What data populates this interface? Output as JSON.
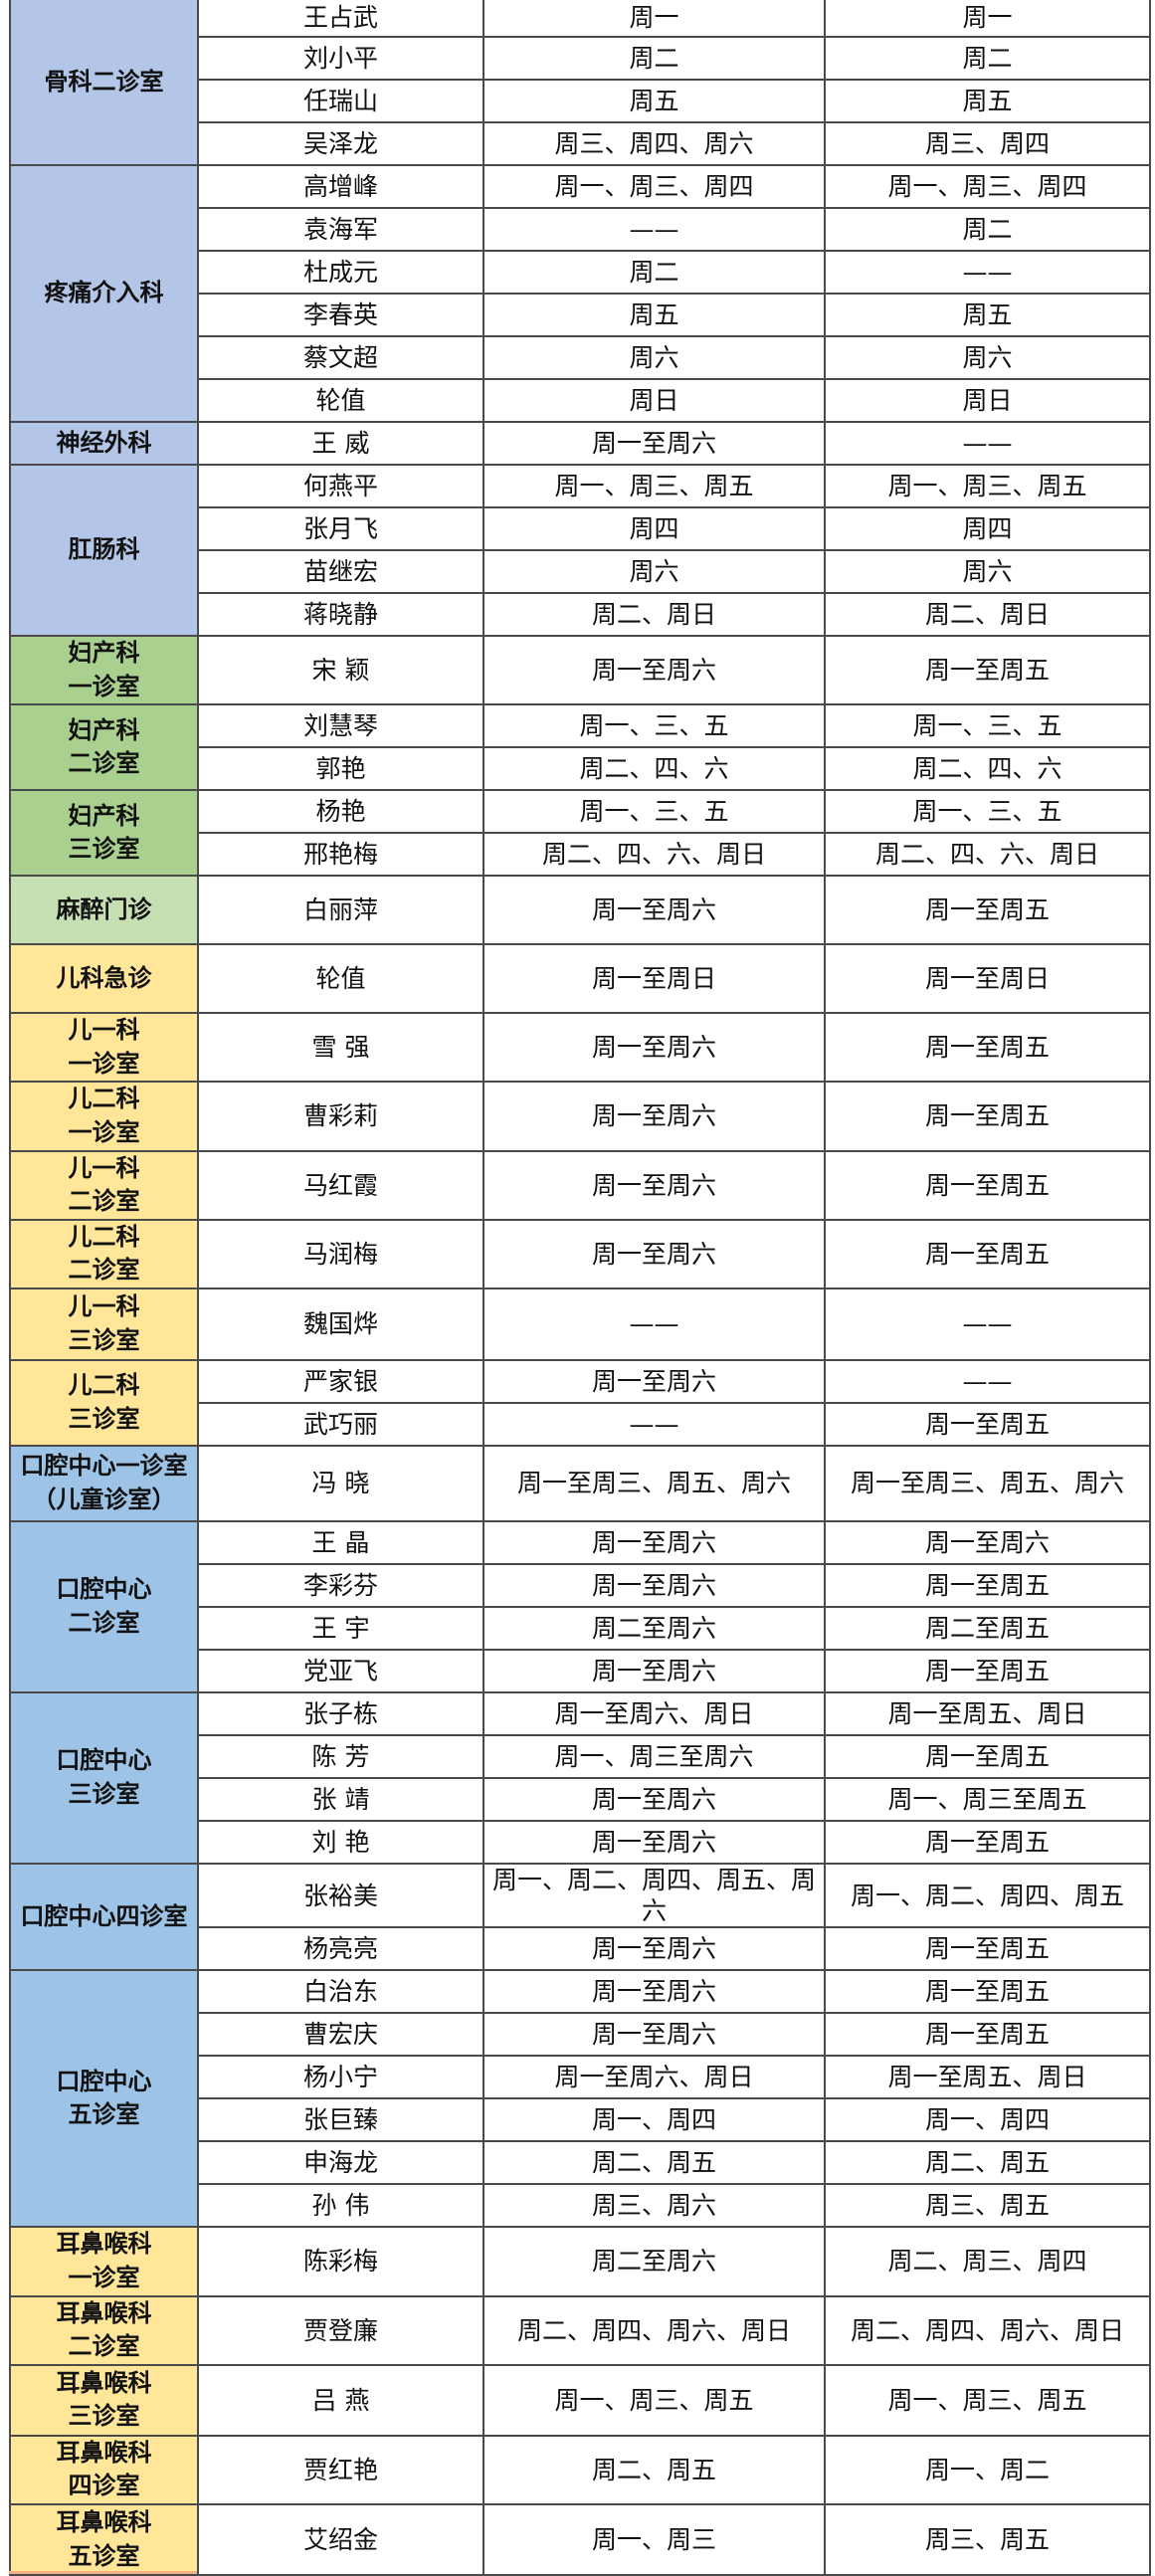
{
  "colors": {
    "blue": "#b4c6e7",
    "green": "#a9d08e",
    "lightgreen": "#c6e0b4",
    "yellow": "#ffe699",
    "oral": "#9dc3e6",
    "orange": "#f4b183"
  },
  "departments": [
    {
      "name": "骨科二诊室",
      "color": "blue",
      "doctors": [
        {
          "name": "王占武",
          "a": "周一",
          "b": "周一"
        },
        {
          "name": "刘小平",
          "a": "周二",
          "b": "周二"
        },
        {
          "name": "任瑞山",
          "a": "周五",
          "b": "周五"
        },
        {
          "name": "吴泽龙",
          "a": "周三、周四、周六",
          "b": "周三、周四"
        }
      ]
    },
    {
      "name": "疼痛介入科",
      "color": "blue",
      "doctors": [
        {
          "name": "高增峰",
          "a": "周一、周三、周四",
          "b": "周一、周三、周四"
        },
        {
          "name": "袁海军",
          "a": "——",
          "b": "周二"
        },
        {
          "name": "杜成元",
          "a": "周二",
          "b": "——"
        },
        {
          "name": "李春英",
          "a": "周五",
          "b": "周五"
        },
        {
          "name": "蔡文超",
          "a": "周六",
          "b": "周六"
        },
        {
          "name": "轮值",
          "a": "周日",
          "b": "周日"
        }
      ]
    },
    {
      "name": "神经外科",
      "color": "blue",
      "doctors": [
        {
          "name": "王 威",
          "a": "周一至周六",
          "b": "——"
        }
      ]
    },
    {
      "name": "肛肠科",
      "color": "blue",
      "doctors": [
        {
          "name": "何燕平",
          "a": "周一、周三、周五",
          "b": "周一、周三、周五"
        },
        {
          "name": "张月飞",
          "a": "周四",
          "b": "周四"
        },
        {
          "name": "苗继宏",
          "a": "周六",
          "b": "周六"
        },
        {
          "name": "蒋晓静",
          "a": "周二、周日",
          "b": "周二、周日"
        }
      ]
    },
    {
      "name": "妇产科\n一诊室",
      "color": "green",
      "doctors": [
        {
          "name": "宋 颖",
          "a": "周一至周六",
          "b": "周一至周五"
        }
      ]
    },
    {
      "name": "妇产科\n二诊室",
      "color": "green",
      "doctors": [
        {
          "name": "刘慧琴",
          "a": "周一、三、五",
          "b": "周一、三、五"
        },
        {
          "name": "郭艳",
          "a": "周二、四、六",
          "b": "周二、四、六"
        }
      ]
    },
    {
      "name": "妇产科\n三诊室",
      "color": "green",
      "doctors": [
        {
          "name": "杨艳",
          "a": "周一、三、五",
          "b": "周一、三、五"
        },
        {
          "name": "邢艳梅",
          "a": "周二、四、六、周日",
          "b": "周二、四、六、周日"
        }
      ]
    },
    {
      "name": "麻醉门诊",
      "color": "lightgreen",
      "doctors": [
        {
          "name": "白丽萍",
          "a": "周一至周六",
          "b": "周一至周五"
        }
      ]
    },
    {
      "name": "儿科急诊",
      "color": "yellow",
      "doctors": [
        {
          "name": "轮值",
          "a": "周一至周日",
          "b": "周一至周日"
        }
      ]
    },
    {
      "name": "儿一科\n一诊室",
      "color": "yellow",
      "doctors": [
        {
          "name": "雪 强",
          "a": "周一至周六",
          "b": "周一至周五"
        }
      ]
    },
    {
      "name": "儿二科\n一诊室",
      "color": "yellow",
      "doctors": [
        {
          "name": "曹彩莉",
          "a": "周一至周六",
          "b": "周一至周五"
        }
      ]
    },
    {
      "name": "儿一科\n二诊室",
      "color": "yellow",
      "doctors": [
        {
          "name": "马红霞",
          "a": "周一至周六",
          "b": "周一至周五"
        }
      ]
    },
    {
      "name": "儿二科\n二诊室",
      "color": "yellow",
      "doctors": [
        {
          "name": "马润梅",
          "a": "周一至周六",
          "b": "周一至周五"
        }
      ]
    },
    {
      "name": "儿一科\n三诊室",
      "color": "yellow",
      "doctors": [
        {
          "name": "魏国烨",
          "a": "——",
          "b": "——"
        }
      ]
    },
    {
      "name": "儿二科\n三诊室",
      "color": "yellow",
      "doctors": [
        {
          "name": "严家银",
          "a": "周一至周六",
          "b": "——"
        },
        {
          "name": "武巧丽",
          "a": "——",
          "b": "周一至周五"
        }
      ]
    },
    {
      "name": "口腔中心一诊室\n（儿童诊室）",
      "color": "oral",
      "doctors": [
        {
          "name": "冯 晓",
          "a": "周一至周三、周五、周六",
          "b": "周一至周三、周五、周六"
        }
      ]
    },
    {
      "name": "口腔中心\n二诊室",
      "color": "oral",
      "doctors": [
        {
          "name": "王 晶",
          "a": "周一至周六",
          "b": "周一至周六"
        },
        {
          "name": "李彩芬",
          "a": "周一至周六",
          "b": "周一至周五"
        },
        {
          "name": "王 宇",
          "a": "周二至周六",
          "b": "周二至周五"
        },
        {
          "name": "党亚飞",
          "a": "周一至周六",
          "b": "周一至周五"
        }
      ]
    },
    {
      "name": "口腔中心\n三诊室",
      "color": "oral",
      "doctors": [
        {
          "name": "张子栋",
          "a": "周一至周六、周日",
          "b": "周一至周五、周日"
        },
        {
          "name": "陈 芳",
          "a": "周一、周三至周六",
          "b": "周一至周五"
        },
        {
          "name": "张 靖",
          "a": "周一至周六",
          "b": "周一、周三至周五"
        },
        {
          "name": "刘 艳",
          "a": "周一至周六",
          "b": "周一至周五"
        }
      ]
    },
    {
      "name": "口腔中心四诊室",
      "color": "oral",
      "doctors": [
        {
          "name": "张裕美",
          "a": "周一、周二、周四、周五、周六",
          "b": "周一、周二、周四、周五"
        },
        {
          "name": "杨亮亮",
          "a": "周一至周六",
          "b": "周一至周五"
        }
      ]
    },
    {
      "name": "口腔中心\n五诊室",
      "color": "oral",
      "doctors": [
        {
          "name": "白治东",
          "a": "周一至周六",
          "b": "周一至周五"
        },
        {
          "name": "曹宏庆",
          "a": "周一至周六",
          "b": "周一至周五"
        },
        {
          "name": "杨小宁",
          "a": "周一至周六、周日",
          "b": "周一至周五、周日"
        },
        {
          "name": "张巨臻",
          "a": "周一、周四",
          "b": "周一、周四"
        },
        {
          "name": "申海龙",
          "a": "周二、周五",
          "b": "周二、周五"
        },
        {
          "name": "孙 伟",
          "a": "周三、周六",
          "b": "周三、周五"
        }
      ]
    },
    {
      "name": "耳鼻喉科\n一诊室",
      "color": "yellow",
      "doctors": [
        {
          "name": "陈彩梅",
          "a": "周二至周六",
          "b": "周二、周三、周四"
        }
      ]
    },
    {
      "name": "耳鼻喉科\n二诊室",
      "color": "yellow",
      "doctors": [
        {
          "name": "贾登廉",
          "a": "周二、周四、周六、周日",
          "b": "周二、周四、周六、周日"
        }
      ]
    },
    {
      "name": "耳鼻喉科\n三诊室",
      "color": "yellow",
      "doctors": [
        {
          "name": "吕 燕",
          "a": "周一、周三、周五",
          "b": "周一、周三、周五"
        }
      ]
    },
    {
      "name": "耳鼻喉科\n四诊室",
      "color": "yellow",
      "doctors": [
        {
          "name": "贾红艳",
          "a": "周二、周五",
          "b": "周一、周二"
        }
      ]
    },
    {
      "name": "耳鼻喉科\n五诊室",
      "color": "yellow",
      "doctors": [
        {
          "name": "艾绍金",
          "a": "周一、周三",
          "b": "周三、周五"
        }
      ]
    }
  ]
}
